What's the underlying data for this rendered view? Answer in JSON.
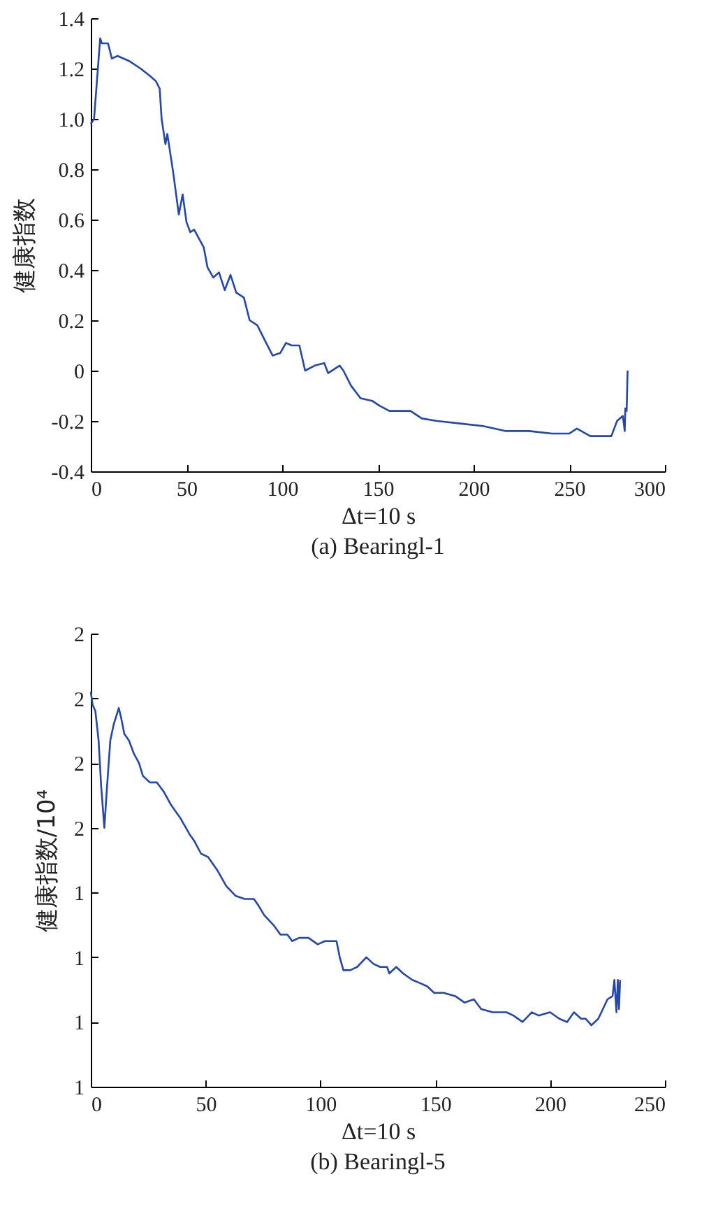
{
  "chart_data": [
    {
      "type": "line",
      "title": "(a) Bearingl-1",
      "xlabel": "Δt=10 s",
      "ylabel": "健康指数",
      "xlim": [
        0,
        300
      ],
      "xticks": [
        0,
        50,
        100,
        150,
        200,
        250,
        300
      ],
      "ylim": [
        -0.4,
        1.4
      ],
      "yticks": [
        -0.4,
        -0.2,
        0,
        0.2,
        0.4,
        0.6,
        0.8,
        {
          "value": 1,
          "label": "1.0"
        },
        1.2,
        1.4
      ],
      "grid": false,
      "series": [
        {
          "color": "#2447a8",
          "x": [
            0,
            1.7,
            4.9,
            5.8,
            9,
            11,
            14,
            20,
            26,
            31,
            34,
            36,
            37,
            39,
            40,
            42,
            43,
            46,
            48,
            50,
            52,
            54,
            59,
            61,
            64,
            67,
            70,
            73,
            76,
            80,
            83,
            87,
            91,
            95,
            99,
            102,
            105,
            109,
            112,
            117,
            122,
            124,
            130,
            132,
            136,
            141,
            147,
            151,
            156,
            167,
            173,
            181,
            193,
            205,
            217,
            229,
            241,
            250,
            254,
            261,
            272,
            275,
            278,
            279,
            279.3,
            280,
            280.5
          ],
          "values": [
            0.98,
            1.0,
            1.32,
            1.3,
            1.3,
            1.24,
            1.25,
            1.23,
            1.2,
            1.17,
            1.15,
            1.12,
            1.0,
            0.9,
            0.94,
            0.84,
            0.79,
            0.62,
            0.7,
            0.59,
            0.55,
            0.56,
            0.49,
            0.41,
            0.37,
            0.39,
            0.32,
            0.38,
            0.31,
            0.29,
            0.2,
            0.18,
            0.12,
            0.06,
            0.07,
            0.11,
            0.1,
            0.1,
            0.0,
            0.02,
            0.03,
            -0.01,
            0.02,
            0.0,
            -0.06,
            -0.11,
            -0.12,
            -0.14,
            -0.16,
            -0.16,
            -0.19,
            -0.2,
            -0.21,
            -0.22,
            -0.24,
            -0.24,
            -0.25,
            -0.25,
            -0.23,
            -0.26,
            -0.26,
            -0.2,
            -0.18,
            -0.24,
            -0.15,
            -0.16,
            0.0
          ]
        }
      ]
    },
    {
      "type": "line",
      "title": "(b) Bearingl-5",
      "xlabel": "Δt=10 s",
      "ylabel": "健康指数/10⁴",
      "xlim": [
        0,
        250
      ],
      "xticks": [
        0,
        50,
        100,
        150,
        200,
        250
      ],
      "ylim": [
        0.8,
        2.2
      ],
      "yticks": [
        {
          "value": 0.8,
          "label": "1"
        },
        {
          "value": 1.0,
          "label": "1"
        },
        {
          "value": 1.2,
          "label": "1"
        },
        {
          "value": 1.4,
          "label": "1"
        },
        {
          "value": 1.6,
          "label": "2"
        },
        {
          "value": 1.8,
          "label": "2"
        },
        {
          "value": 2.0,
          "label": "2"
        },
        {
          "value": 2.2,
          "label": "2"
        }
      ],
      "grid": false,
      "series": [
        {
          "color": "#2447a8",
          "x": [
            0,
            0.8,
            2,
            3.4,
            4.5,
            5.9,
            7.1,
            8.5,
            10,
            12.2,
            13.2,
            14.6,
            16.6,
            18.7,
            21,
            22.7,
            25.8,
            28.8,
            31.9,
            35,
            39,
            43,
            45,
            48,
            51,
            55,
            59,
            63,
            67,
            71,
            73,
            75.5,
            79.5,
            82.6,
            85.6,
            87.7,
            90.7,
            94.8,
            98.8,
            102,
            105,
            107,
            108.4,
            110,
            113,
            116,
            120,
            123,
            126,
            129,
            130,
            133,
            136,
            140,
            143.4,
            146.5,
            149.5,
            153.6,
            158.7,
            162.7,
            166.8,
            170,
            175,
            181,
            184,
            188,
            192,
            195,
            200,
            204,
            207.4,
            210.4,
            213.5,
            215.5,
            218,
            221,
            225,
            227.2,
            228,
            228.9,
            229.5,
            230,
            230.5
          ],
          "values": [
            2.02,
            1.98,
            1.96,
            1.87,
            1.73,
            1.6,
            1.73,
            1.87,
            1.92,
            1.97,
            1.94,
            1.89,
            1.87,
            1.83,
            1.8,
            1.76,
            1.74,
            1.74,
            1.71,
            1.67,
            1.63,
            1.58,
            1.56,
            1.52,
            1.51,
            1.47,
            1.42,
            1.39,
            1.38,
            1.38,
            1.36,
            1.33,
            1.3,
            1.27,
            1.27,
            1.25,
            1.26,
            1.26,
            1.24,
            1.25,
            1.25,
            1.25,
            1.2,
            1.16,
            1.16,
            1.17,
            1.2,
            1.18,
            1.17,
            1.17,
            1.15,
            1.17,
            1.15,
            1.13,
            1.12,
            1.11,
            1.09,
            1.09,
            1.08,
            1.06,
            1.07,
            1.04,
            1.03,
            1.03,
            1.02,
            1.0,
            1.03,
            1.02,
            1.03,
            1.01,
            1.0,
            1.03,
            1.01,
            1.01,
            0.99,
            1.01,
            1.07,
            1.08,
            1.13,
            1.03,
            1.13,
            1.04,
            1.13
          ]
        }
      ]
    }
  ]
}
